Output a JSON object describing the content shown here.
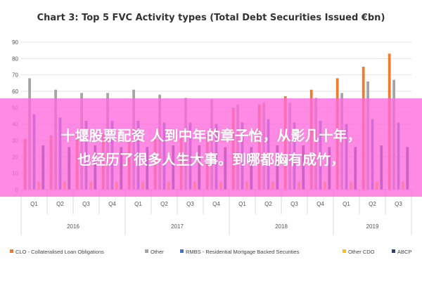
{
  "chart_data": {
    "type": "bar",
    "title": "Chart 3: Top 5 FVC Activity types (Total Debt Securities Issued €bn)",
    "ylim": [
      0,
      90
    ],
    "yticks": [
      0,
      10,
      20,
      30,
      40,
      50,
      60,
      70,
      80,
      90
    ],
    "grid": true,
    "legend_position": "bottom",
    "categories": [
      "Q1",
      "Q2",
      "Q3",
      "Q4",
      "Q1",
      "Q2",
      "Q3",
      "Q4",
      "Q1",
      "Q2",
      "Q3",
      "Q4",
      "Q1",
      "Q2",
      "Q3"
    ],
    "years": [
      {
        "label": "2016",
        "span": 4
      },
      {
        "label": "2017",
        "span": 4
      },
      {
        "label": "2018",
        "span": 4
      },
      {
        "label": "2019",
        "span": 3
      }
    ],
    "series": [
      {
        "name": "CLO - Collateralised Loan Obligations",
        "color": "#ed7d31",
        "values": [
          31,
          33,
          35,
          34,
          30,
          31,
          34,
          34,
          50,
          52,
          57,
          61,
          68,
          75,
          83
        ]
      },
      {
        "name": "Other",
        "color": "#a5a5a5",
        "values": [
          68,
          61,
          59,
          59,
          61,
          58,
          56,
          55,
          52,
          53,
          53,
          56,
          59,
          66,
          67
        ]
      },
      {
        "name": "RMBS - Residential Mortgage Backed Securities",
        "color": "#4472c4",
        "values": [
          46,
          44,
          42,
          42,
          42,
          41,
          41,
          40,
          41,
          43,
          41,
          42,
          40,
          43,
          41
        ]
      },
      {
        "name": "Other CDO",
        "color": "#ffc000",
        "values": [
          5,
          5,
          5,
          5,
          5,
          5,
          5,
          5,
          5,
          5,
          5,
          5,
          5,
          5,
          5
        ]
      },
      {
        "name": "ABCP",
        "color": "#264478",
        "values": [
          27,
          26,
          27,
          26,
          26,
          27,
          27,
          26,
          26,
          27,
          27,
          26,
          26,
          27,
          26
        ]
      }
    ]
  },
  "overlay": {
    "line1": "十堰股票配资 人到中年的章子怡，从影几十年，",
    "line2": "也经历了很多人生大事。到哪都胸有成竹，"
  }
}
